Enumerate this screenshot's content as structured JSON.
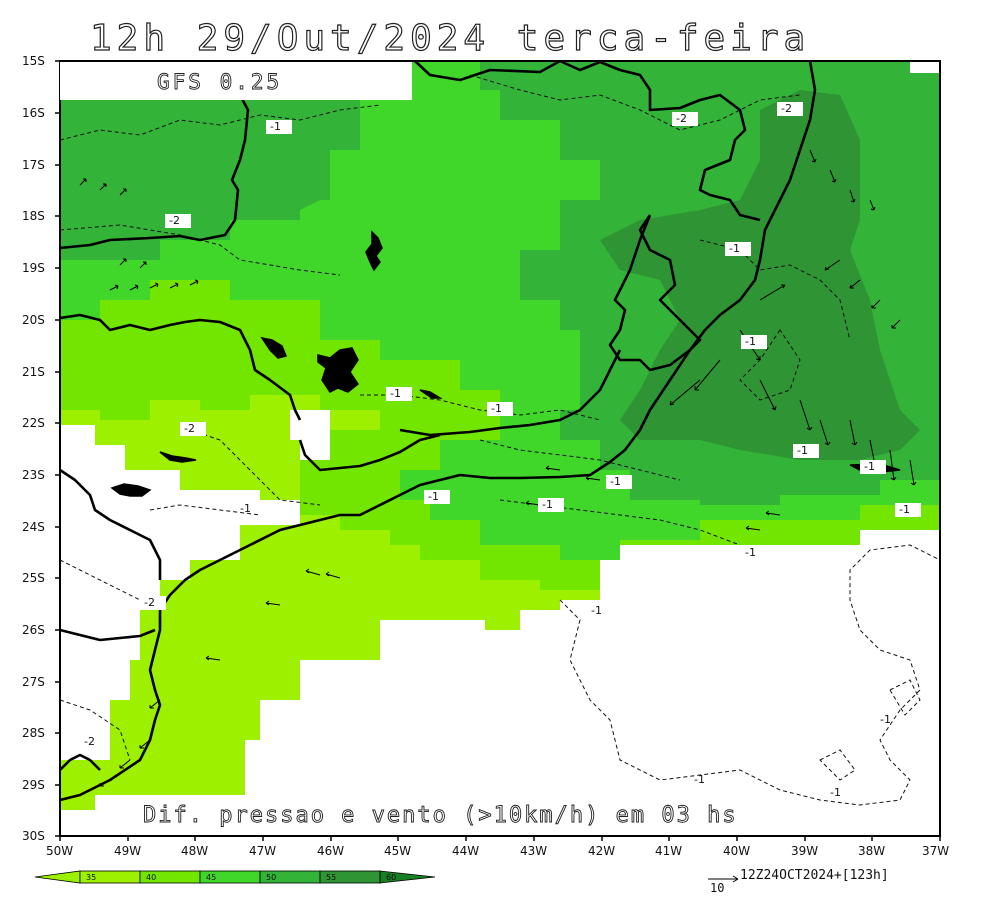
{
  "header": {
    "title": "12h 29/Out/2024 terca-feira"
  },
  "model_label": "GFS 0.25",
  "caption": "Dif. pressao e vento (>10km/h) em 03 hs",
  "lat_labels": [
    "15S",
    "16S",
    "17S",
    "18S",
    "19S",
    "20S",
    "21S",
    "22S",
    "23S",
    "24S",
    "25S",
    "26S",
    "27S",
    "28S",
    "29S",
    "30S"
  ],
  "lon_labels": [
    "50W",
    "49W",
    "48W",
    "47W",
    "46W",
    "45W",
    "44W",
    "43W",
    "42W",
    "41W",
    "40W",
    "39W",
    "38W",
    "37W"
  ],
  "colorbar": {
    "ticks": [
      "35",
      "40",
      "45",
      "50",
      "55",
      "60"
    ],
    "colors": [
      "#8ff000",
      "#6ee600",
      "#3fd82c",
      "#31b338",
      "#2c9431",
      "#187f25"
    ]
  },
  "contour_labels": [
    "-1",
    "-1",
    "-1",
    "-1",
    "-1",
    "-1",
    "-1",
    "-1",
    "-1",
    "-1",
    "-1",
    "-1",
    "-1",
    "-1",
    "-1",
    "-1",
    "-1",
    "-2",
    "-2",
    "-2",
    "-2",
    "-2",
    "-2"
  ],
  "reference": {
    "vector": "10",
    "run": "12Z24OCT2024+[123h]"
  },
  "colors": {
    "c35": "#9cf000",
    "c40": "#73e600",
    "c45": "#40d62a",
    "c50": "#33b338",
    "c55": "#2f9434",
    "land": "#000000"
  }
}
